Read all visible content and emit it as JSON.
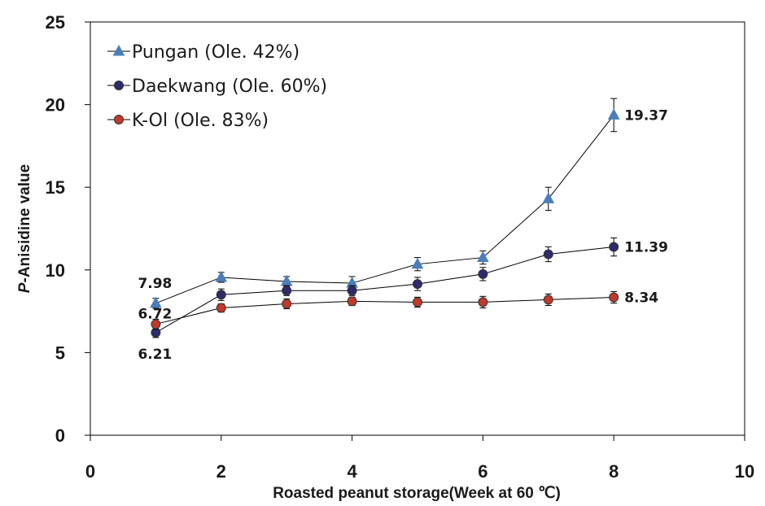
{
  "chart_data": {
    "type": "line",
    "xlabel": "Roasted peanut storage(Week at 60 ℃)",
    "ylabel_prefix": "P",
    "ylabel_rest": "-Anisidine value",
    "xlim": [
      0,
      10
    ],
    "ylim": [
      0,
      25
    ],
    "x_ticks": [
      0,
      2,
      4,
      6,
      8,
      10
    ],
    "y_ticks": [
      0,
      5,
      10,
      15,
      20,
      25
    ],
    "grid": false,
    "legend_position": "top-left",
    "x": [
      1,
      2,
      3,
      4,
      5,
      6,
      7,
      8
    ],
    "series": [
      {
        "name": "Pungan (Ole. 42%)",
        "marker": "triangle",
        "color": "#4a7ebb",
        "values": [
          7.98,
          9.55,
          9.3,
          9.2,
          10.35,
          10.75,
          14.3,
          19.37
        ],
        "errors": [
          0.3,
          0.3,
          0.3,
          0.4,
          0.4,
          0.4,
          0.7,
          1.0
        ]
      },
      {
        "name": "Daekwang (Ole. 60%)",
        "marker": "circle",
        "color": "#2e2a6b",
        "values": [
          6.21,
          8.5,
          8.75,
          8.75,
          9.15,
          9.75,
          10.95,
          11.39
        ],
        "errors": [
          0.3,
          0.35,
          0.3,
          0.3,
          0.4,
          0.4,
          0.45,
          0.55
        ]
      },
      {
        "name": "K-Ol (Ole. 83%)",
        "marker": "circle",
        "color": "#c0392b",
        "values": [
          6.72,
          7.7,
          7.95,
          8.1,
          8.05,
          8.05,
          8.2,
          8.34
        ],
        "errors": [
          0.3,
          0.25,
          0.3,
          0.25,
          0.3,
          0.35,
          0.35,
          0.35
        ]
      }
    ],
    "annotations": [
      {
        "text": "7.98",
        "x": 1,
        "series": 0
      },
      {
        "text": "6.72",
        "x": 1,
        "series": 2
      },
      {
        "text": "6.21",
        "x": 1,
        "series": 1
      },
      {
        "text": "19.37",
        "x": 8,
        "series": 0
      },
      {
        "text": "11.39",
        "x": 8,
        "series": 1
      },
      {
        "text": "8.34",
        "x": 8,
        "series": 2
      }
    ]
  }
}
